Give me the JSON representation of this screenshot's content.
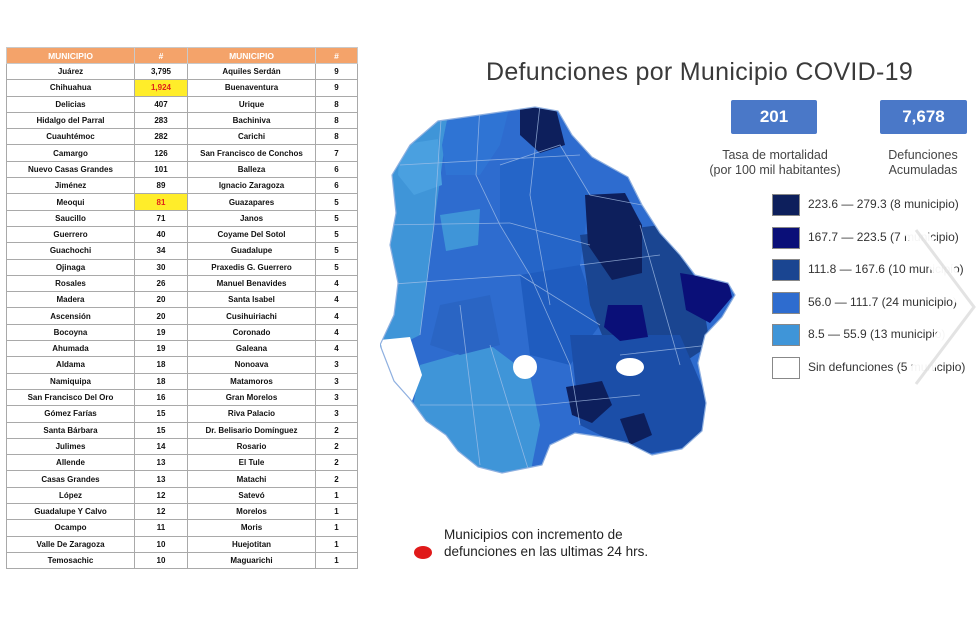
{
  "table": {
    "headers": [
      "MUNICIPIO",
      "#",
      "MUNICIPIO",
      "#"
    ],
    "rows": [
      [
        "Juárez",
        "3,795",
        "Aquiles Serdán",
        "9"
      ],
      [
        "Chihuahua",
        "1,924",
        "Buenaventura",
        "9"
      ],
      [
        "Delicias",
        "407",
        "Urique",
        "8"
      ],
      [
        "Hidalgo del Parral",
        "283",
        "Bachiniva",
        "8"
      ],
      [
        "Cuauhtémoc",
        "282",
        "Carichi",
        "8"
      ],
      [
        "Camargo",
        "126",
        "San Francisco de Conchos",
        "7"
      ],
      [
        "Nuevo Casas Grandes",
        "101",
        "Balleza",
        "6"
      ],
      [
        "Jiménez",
        "89",
        "Ignacio Zaragoza",
        "6"
      ],
      [
        "Meoqui",
        "81",
        "Guazapares",
        "5"
      ],
      [
        "Saucillo",
        "71",
        "Janos",
        "5"
      ],
      [
        "Guerrero",
        "40",
        "Coyame Del Sotol",
        "5"
      ],
      [
        "Guachochi",
        "34",
        "Guadalupe",
        "5"
      ],
      [
        "Ojinaga",
        "30",
        "Praxedis G. Guerrero",
        "5"
      ],
      [
        "Rosales",
        "26",
        "Manuel Benavides",
        "4"
      ],
      [
        "Madera",
        "20",
        "Santa Isabel",
        "4"
      ],
      [
        "Ascensión",
        "20",
        "Cusihuiriachi",
        "4"
      ],
      [
        "Bocoyna",
        "19",
        "Coronado",
        "4"
      ],
      [
        "Ahumada",
        "19",
        "Galeana",
        "4"
      ],
      [
        "Aldama",
        "18",
        "Nonoava",
        "3"
      ],
      [
        "Namiquipa",
        "18",
        "Matamoros",
        "3"
      ],
      [
        "San Francisco Del Oro",
        "16",
        "Gran Morelos",
        "3"
      ],
      [
        "Gómez Farías",
        "15",
        "Riva Palacio",
        "3"
      ],
      [
        "Santa Bárbara",
        "15",
        "Dr. Belisario Domínguez",
        "2"
      ],
      [
        "Julimes",
        "14",
        "Rosario",
        "2"
      ],
      [
        "Allende",
        "13",
        "El Tule",
        "2"
      ],
      [
        "Casas Grandes",
        "13",
        "Matachi",
        "2"
      ],
      [
        "López",
        "12",
        "Satevó",
        "1"
      ],
      [
        "Guadalupe Y Calvo",
        "12",
        "Morelos",
        "1"
      ],
      [
        "Ocampo",
        "11",
        "Moris",
        "1"
      ],
      [
        "Valle De Zaragoza",
        "10",
        "Huejotitan",
        "1"
      ],
      [
        "Temosachic",
        "10",
        "Maguarichi",
        "1"
      ]
    ],
    "highlighted_rows": [
      1,
      8
    ]
  },
  "panel": {
    "title": "Defunciones por Municipio COVID-19",
    "rate_value": "201",
    "rate_label_1": "Tasa de mortalidad",
    "rate_label_2": "(por 100 mil habitantes)",
    "deaths_value": "7,678",
    "deaths_label_1": "Defunciones",
    "deaths_label_2": "Acumuladas"
  },
  "legend": [
    {
      "label": "223.6 — 279.3 (8 municipio)",
      "color": "#0d1f5c"
    },
    {
      "label": "167.7 — 223.5 (7 municipio)",
      "color": "#0a0f78"
    },
    {
      "label": "111.8 — 167.6 (10 municipio)",
      "color": "#1a4591"
    },
    {
      "label": "56.0 — 111.7 (24 municipio)",
      "color": "#2e6ccf"
    },
    {
      "label": "8.5 — 55.9 (13 municipio)",
      "color": "#3f95d8"
    },
    {
      "label": "Sin defunciones (5 municipio)",
      "color": "#ffffff"
    }
  ],
  "note": {
    "line1": "Municipios con incremento de",
    "line2": "defunciones en las ultimas 24 hrs.",
    "dot_color": "#e01a1a"
  },
  "icons": {
    "next": "chevron-right-icon"
  }
}
